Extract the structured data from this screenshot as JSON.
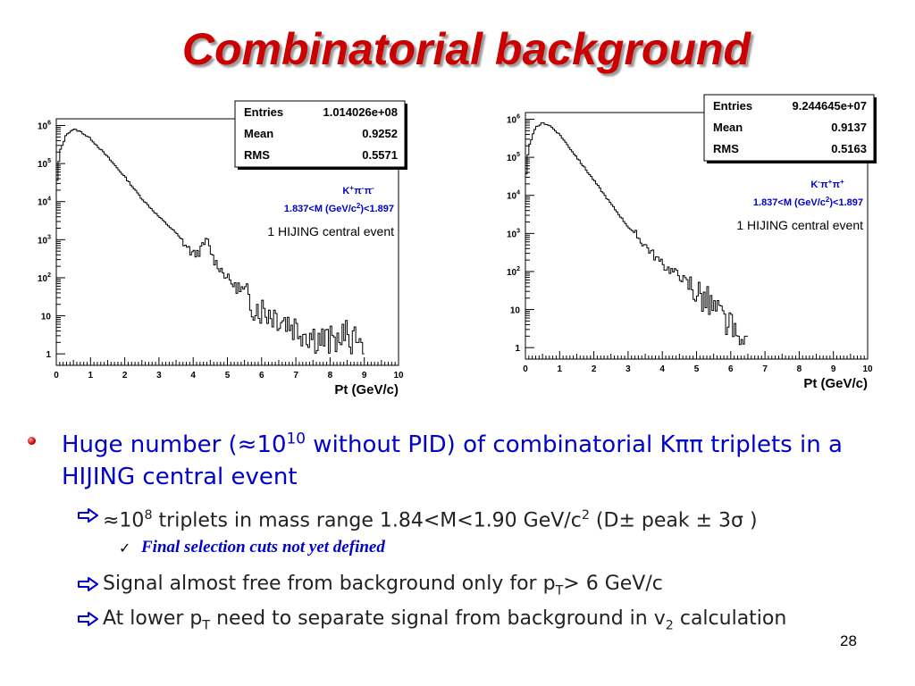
{
  "slide": {
    "title": "Combinatorial background",
    "page_number": "28"
  },
  "chart_data": [
    {
      "type": "line",
      "xlabel": "Pt (GeV/c)",
      "xlim": [
        0,
        10
      ],
      "ylim": [
        0.5,
        1500000
      ],
      "yscale": "log",
      "x_ticks": [
        "0",
        "1",
        "2",
        "3",
        "4",
        "5",
        "6",
        "7",
        "8",
        "9",
        "10"
      ],
      "y_ticks": [
        "1",
        "10",
        "10^2",
        "10^3",
        "10^4",
        "10^5",
        "10^6"
      ],
      "stats": [
        {
          "key": "Entries",
          "value": "1.014026e+08"
        },
        {
          "key": "Mean",
          "value": "0.9252"
        },
        {
          "key": "RMS",
          "value": "0.5571"
        }
      ],
      "legend": {
        "line1": "K+π-π-",
        "line2": "1.837<M (GeV/c2)<1.897"
      },
      "annotation": "1 HIJING central event",
      "series": [
        {
          "x": [
            0.0,
            0.1,
            0.3,
            0.5,
            0.7,
            1.0,
            1.5,
            2.0,
            2.5,
            3.0,
            3.5,
            4.0,
            4.2,
            4.4,
            4.6,
            5.0,
            5.5,
            6.0,
            6.5,
            7.0,
            7.5,
            8.0,
            8.5,
            9.0
          ],
          "y": [
            20000,
            200000,
            600000,
            800000,
            700000,
            450000,
            150000,
            45000,
            12000,
            4000,
            1500,
            400,
            500,
            1000,
            300,
            100,
            30,
            15,
            10,
            5,
            3,
            2,
            3,
            1
          ]
        }
      ]
    },
    {
      "type": "line",
      "xlabel": "Pt (GeV/c)",
      "xlim": [
        0,
        10
      ],
      "ylim": [
        0.5,
        1500000
      ],
      "yscale": "log",
      "x_ticks": [
        "0",
        "1",
        "2",
        "3",
        "4",
        "5",
        "6",
        "7",
        "8",
        "9",
        "10"
      ],
      "y_ticks": [
        "1",
        "10",
        "10^2",
        "10^3",
        "10^4",
        "10^5",
        "10^6"
      ],
      "stats": [
        {
          "key": "Entries",
          "value": "9.244645e+07"
        },
        {
          "key": "Mean",
          "value": "0.9137"
        },
        {
          "key": "RMS",
          "value": "0.5163"
        }
      ],
      "legend": {
        "line1": "K-π+π+",
        "line2": "1.837<M (GeV/c2)<1.897"
      },
      "annotation": "1 HIJING central event",
      "series": [
        {
          "x": [
            0.0,
            0.1,
            0.3,
            0.5,
            0.7,
            1.0,
            1.5,
            2.0,
            2.5,
            3.0,
            3.5,
            4.0,
            4.5,
            5.0,
            5.5,
            5.8,
            6.0,
            6.3,
            6.5
          ],
          "y": [
            20000,
            200000,
            600000,
            800000,
            700000,
            400000,
            100000,
            25000,
            6000,
            1500,
            500,
            150,
            80,
            30,
            10,
            5,
            3,
            1,
            1
          ]
        }
      ]
    }
  ],
  "bullets": {
    "b1": "Huge number (≈10^10 without PID) of combinatorial Kππ triplets in a HIJING central event",
    "b2a": "≈10^8 triplets in mass range 1.84<M<1.90 GeV/c^2 (D± peak ± 3σ )",
    "b3": "Final selection cuts not yet defined",
    "b2b": "Signal almost free from background only for pT> 6 GeV/c",
    "b2c": "At lower pT need to separate signal from background in v2 calculation"
  }
}
